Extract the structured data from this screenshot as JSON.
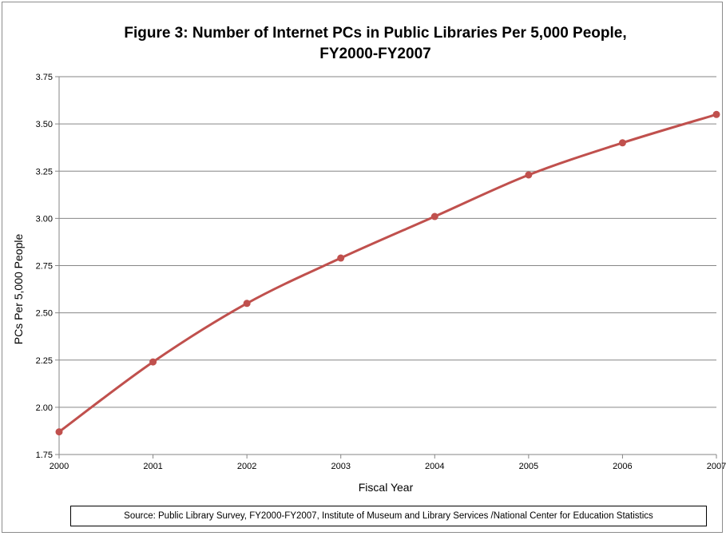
{
  "chart_data": {
    "type": "line",
    "title_line1": "Figure 3: Number of Internet PCs in Public Libraries Per 5,000 People,",
    "title_line2": "FY2000-FY2007",
    "xlabel": "Fiscal Year",
    "ylabel": "PCs Per 5,000 People",
    "x": [
      "2000",
      "2001",
      "2002",
      "2003",
      "2004",
      "2005",
      "2006",
      "2007"
    ],
    "series": [
      {
        "values": [
          1.87,
          2.24,
          2.55,
          2.79,
          3.01,
          3.23,
          3.4,
          3.55
        ]
      }
    ],
    "ylim": [
      1.75,
      3.75
    ],
    "yticks": [
      "1.75",
      "2.00",
      "2.25",
      "2.50",
      "2.75",
      "3.00",
      "3.25",
      "3.50",
      "3.75"
    ],
    "grid": true,
    "legend": "none",
    "line_color": "#c0504d",
    "source": "Source: Public Library Survey, FY2000-FY2007,  Institute of Museum and  Library Services /National Center for Education  Statistics"
  }
}
